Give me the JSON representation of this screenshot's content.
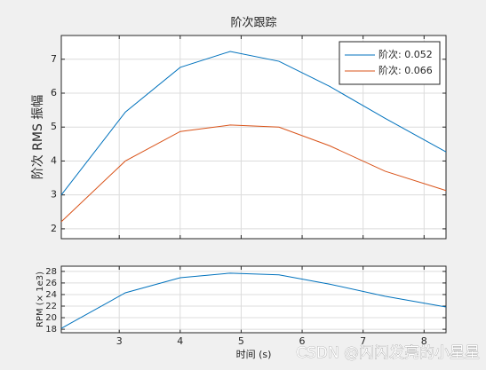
{
  "chart_data": [
    {
      "type": "line",
      "title": "阶次跟踪",
      "y_label": "阶次 RMS 振幅",
      "x": [
        2.05,
        3.1,
        4.0,
        4.82,
        5.62,
        6.45,
        7.36,
        8.36
      ],
      "series": [
        {
          "name": "阶次: 0.052",
          "color": "#0072bd",
          "values": [
            3.0,
            5.44,
            6.76,
            7.23,
            6.94,
            6.2,
            5.26,
            4.27
          ]
        },
        {
          "name": "阶次: 0.066",
          "color": "#d95319",
          "values": [
            2.21,
            4.0,
            4.87,
            5.06,
            5.0,
            4.45,
            3.7,
            3.13
          ]
        }
      ],
      "xlim": [
        2.05,
        8.36
      ],
      "xticks": [
        3,
        4,
        5,
        6,
        7,
        8
      ],
      "xtick_labels": false,
      "ylim": [
        1.71,
        7.7
      ],
      "yticks": [
        2,
        3,
        4,
        5,
        6,
        7
      ],
      "grid": true,
      "legend": "top-right"
    },
    {
      "type": "line",
      "x_label": "时间 (s)",
      "y_label": "RPM (× 1e3)",
      "x": [
        2.05,
        3.1,
        4.0,
        4.82,
        5.62,
        6.45,
        7.36,
        8.36
      ],
      "values": [
        18.15,
        24.3,
        26.9,
        27.7,
        27.4,
        25.8,
        23.7,
        21.85
      ],
      "color": "#0072bd",
      "xlim": [
        2.05,
        8.36
      ],
      "xticks": [
        3,
        4,
        5,
        6,
        7,
        8
      ],
      "xtick_labels": true,
      "ylim": [
        17.4,
        28.9
      ],
      "yticks": [
        18,
        20,
        22,
        24,
        26,
        28
      ],
      "grid": true
    }
  ],
  "watermark": "CSDN @闪闪发亮的小星星"
}
